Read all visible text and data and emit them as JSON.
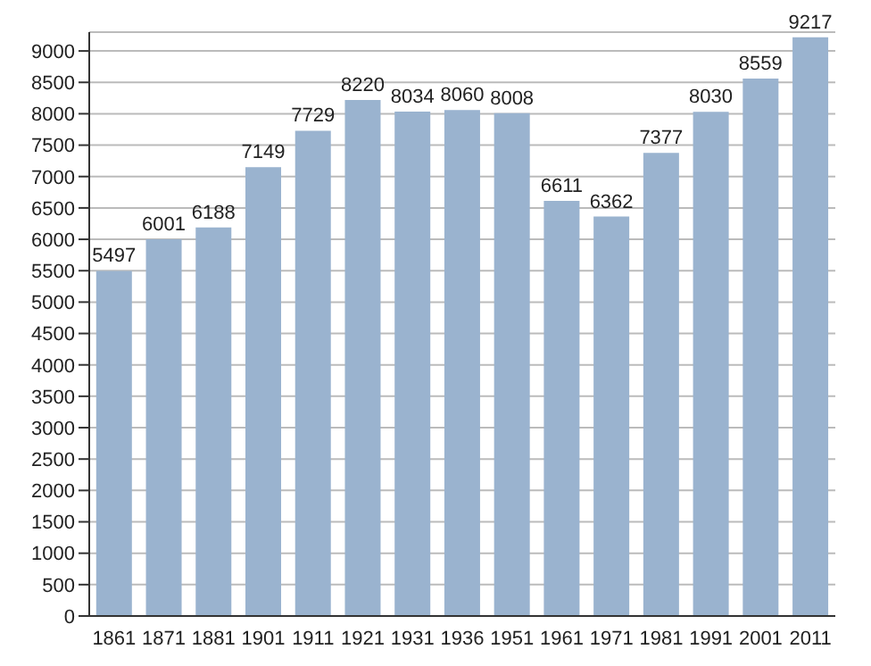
{
  "chart_data": {
    "type": "bar",
    "categories": [
      "1861",
      "1871",
      "1881",
      "1901",
      "1911",
      "1921",
      "1931",
      "1936",
      "1951",
      "1961",
      "1971",
      "1981",
      "1991",
      "2001",
      "2011"
    ],
    "values": [
      5497,
      6001,
      6188,
      7149,
      7729,
      8220,
      8034,
      8060,
      8008,
      6611,
      6362,
      7377,
      8030,
      8559,
      9217
    ],
    "color": "#9ab3cf",
    "ylim": [
      0,
      9300
    ],
    "yticks": [
      0,
      500,
      1000,
      1500,
      2000,
      2500,
      3000,
      3500,
      4000,
      4500,
      5000,
      5500,
      6000,
      6500,
      7000,
      7500,
      8000,
      8500,
      9000
    ],
    "grid": "y",
    "data_labels": true
  }
}
